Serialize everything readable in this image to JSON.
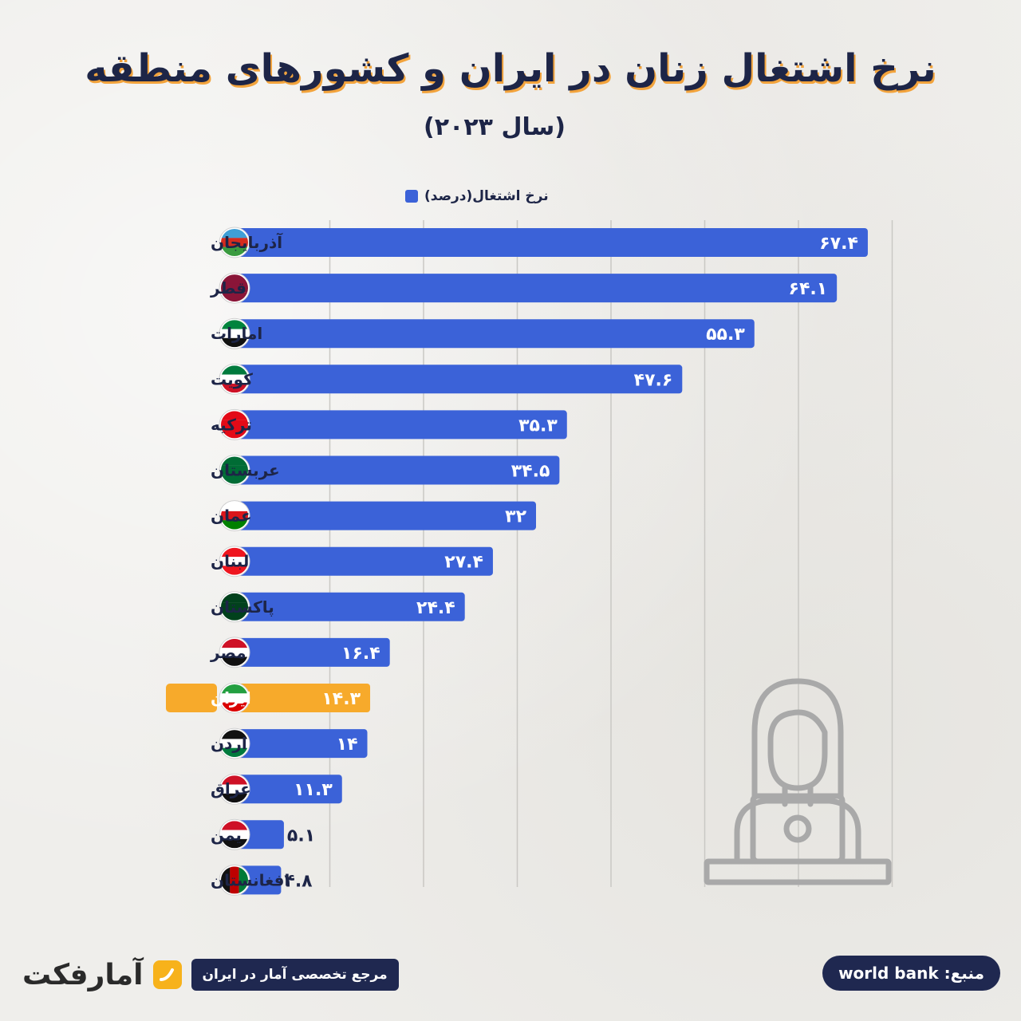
{
  "header": {
    "title": "نرخ اشتغال زنان در ایران و کشورهای منطقه",
    "subtitle": "(سال ۲۰۲۳)"
  },
  "footer": {
    "reference": "مرجع تخصصی آمار در ایران",
    "logo": "آمارفکت",
    "source": "منبع: world bank"
  },
  "colors": {
    "bar": "#3b62d8",
    "highlight": "#f7aa2b",
    "text": "#1d2547"
  },
  "chart_data": {
    "type": "bar",
    "orientation": "horizontal",
    "title": "نرخ اشتغال زنان در ایران و کشورهای منطقه",
    "subtitle": "(سال ۲۰۲۳)",
    "legend": [
      "نرخ اشتغال(درصد)"
    ],
    "legend_position": "top",
    "xlim": [
      0,
      70
    ],
    "grid": true,
    "highlight_category": "ایران",
    "categories": [
      "آذربایجان",
      "قطر",
      "امارات",
      "کویت",
      "ترکیه",
      "عربستان",
      "عمان",
      "لبنان",
      "پاکستان",
      "مصر",
      "ایران",
      "اردن",
      "عراق",
      "یمن",
      "افغانستان"
    ],
    "values": [
      67.4,
      64.1,
      55.3,
      47.6,
      35.3,
      34.5,
      32,
      27.4,
      24.4,
      16.4,
      14.3,
      14,
      11.3,
      5.1,
      4.8
    ],
    "value_labels": [
      "۶۷.۴",
      "۶۴.۱",
      "۵۵.۳",
      "۴۷.۶",
      "۳۵.۳",
      "۳۴.۵",
      "۳۲",
      "۲۷.۴",
      "۲۴.۴",
      "۱۶.۴",
      "۱۴.۳",
      "۱۴",
      "۱۱.۳",
      "۵.۱",
      "۴.۸"
    ],
    "flags": [
      "azerbaijan-flag",
      "qatar-flag",
      "uae-flag",
      "kuwait-flag",
      "turkey-flag",
      "saudi-flag",
      "oman-flag",
      "lebanon-flag",
      "pakistan-flag",
      "egypt-flag",
      "iran-flag",
      "jordan-flag",
      "iraq-flag",
      "yemen-flag",
      "afghanistan-flag"
    ]
  }
}
